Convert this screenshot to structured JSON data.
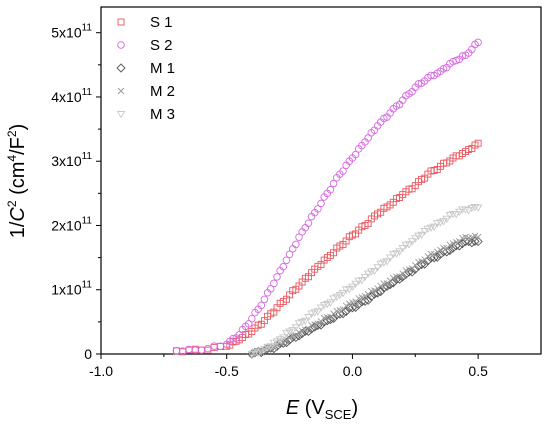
{
  "chart_data": {
    "type": "scatter",
    "xlabel": {
      "main": "E",
      "open": " (V",
      "sub": "SCE",
      "close": ")"
    },
    "ylabel": {
      "pre": "1/",
      "main": "C",
      "sup": "2",
      "mid": " (cm",
      "sup2": "4",
      "mid2": "/F",
      "sup3": "2",
      "close": ")"
    },
    "xlim": [
      -1.0,
      0.75
    ],
    "ylim": [
      0,
      540000000000.0
    ],
    "x_ticks": [
      {
        "value": -1.0,
        "label": "-1.0"
      },
      {
        "value": -0.5,
        "label": "-0.5"
      },
      {
        "value": 0.0,
        "label": "0.0"
      },
      {
        "value": 0.5,
        "label": "0.5"
      }
    ],
    "y_ticks": [
      {
        "value": 0,
        "label": "0",
        "exp": ""
      },
      {
        "value": 100000000000.0,
        "label": "1x10",
        "exp": "11"
      },
      {
        "value": 200000000000.0,
        "label": "2x10",
        "exp": "11"
      },
      {
        "value": 300000000000.0,
        "label": "3x10",
        "exp": "11"
      },
      {
        "value": 400000000000.0,
        "label": "4x10",
        "exp": "11"
      },
      {
        "value": 500000000000.0,
        "label": "5x10",
        "exp": "11"
      }
    ],
    "legend_position": "top-left",
    "series": [
      {
        "name": "S 1",
        "marker": "square",
        "color": "#e8585f",
        "x": [
          -0.7,
          -0.6,
          -0.5,
          -0.45,
          -0.4,
          -0.35,
          -0.3,
          -0.25,
          -0.2,
          -0.15,
          -0.1,
          -0.05,
          0.0,
          0.05,
          0.1,
          0.15,
          0.2,
          0.25,
          0.3,
          0.35,
          0.4,
          0.45,
          0.5
        ],
        "y": [
          5000000000.0,
          6000000000.0,
          12000000000.0,
          22000000000.0,
          35000000000.0,
          52000000000.0,
          72000000000.0,
          92000000000.0,
          112000000000.0,
          132000000000.0,
          150000000000.0,
          168000000000.0,
          185000000000.0,
          200000000000.0,
          218000000000.0,
          232000000000.0,
          248000000000.0,
          262000000000.0,
          280000000000.0,
          292000000000.0,
          305000000000.0,
          315000000000.0,
          328000000000.0
        ]
      },
      {
        "name": "S 2",
        "marker": "circle",
        "color": "#d768e2",
        "x": [
          -0.7,
          -0.6,
          -0.5,
          -0.45,
          -0.4,
          -0.35,
          -0.3,
          -0.25,
          -0.2,
          -0.15,
          -0.1,
          -0.05,
          0.0,
          0.05,
          0.1,
          0.15,
          0.2,
          0.25,
          0.3,
          0.35,
          0.4,
          0.45,
          0.5
        ],
        "y": [
          5000000000.0,
          6000000000.0,
          15000000000.0,
          30000000000.0,
          55000000000.0,
          85000000000.0,
          120000000000.0,
          155000000000.0,
          190000000000.0,
          220000000000.0,
          250000000000.0,
          280000000000.0,
          305000000000.0,
          330000000000.0,
          355000000000.0,
          375000000000.0,
          395000000000.0,
          415000000000.0,
          430000000000.0,
          440000000000.0,
          455000000000.0,
          465000000000.0,
          485000000000.0
        ]
      },
      {
        "name": "M 1",
        "marker": "diamond",
        "color": "#555555",
        "x": [
          -0.4,
          -0.35,
          -0.3,
          -0.25,
          -0.2,
          -0.15,
          -0.1,
          -0.05,
          0.0,
          0.05,
          0.1,
          0.15,
          0.2,
          0.25,
          0.3,
          0.35,
          0.4,
          0.45,
          0.5
        ],
        "y": [
          0.0,
          5000000000.0,
          12000000000.0,
          22000000000.0,
          32000000000.0,
          42000000000.0,
          52000000000.0,
          62000000000.0,
          72000000000.0,
          82000000000.0,
          95000000000.0,
          108000000000.0,
          120000000000.0,
          132000000000.0,
          145000000000.0,
          155000000000.0,
          165000000000.0,
          175000000000.0,
          175000000000.0
        ]
      },
      {
        "name": "M 2",
        "marker": "cross",
        "color": "#9a9a9a",
        "x": [
          -0.4,
          -0.35,
          -0.3,
          -0.25,
          -0.2,
          -0.15,
          -0.1,
          -0.05,
          0.0,
          0.05,
          0.1,
          0.15,
          0.2,
          0.25,
          0.3,
          0.35,
          0.4,
          0.45,
          0.5
        ],
        "y": [
          0.0,
          6000000000.0,
          14000000000.0,
          25000000000.0,
          36000000000.0,
          46000000000.0,
          57000000000.0,
          68000000000.0,
          80000000000.0,
          90000000000.0,
          102000000000.0,
          114000000000.0,
          125000000000.0,
          138000000000.0,
          152000000000.0,
          162000000000.0,
          172000000000.0,
          182000000000.0,
          182000000000.0
        ]
      },
      {
        "name": "M 3",
        "marker": "triangle-down",
        "color": "#c8c8c8",
        "x": [
          -0.4,
          -0.35,
          -0.3,
          -0.25,
          -0.2,
          -0.15,
          -0.1,
          -0.05,
          0.0,
          0.05,
          0.1,
          0.15,
          0.2,
          0.25,
          0.3,
          0.35,
          0.4,
          0.45,
          0.5
        ],
        "y": [
          0.0,
          8000000000.0,
          20000000000.0,
          35000000000.0,
          50000000000.0,
          65000000000.0,
          78000000000.0,
          92000000000.0,
          105000000000.0,
          120000000000.0,
          135000000000.0,
          150000000000.0,
          165000000000.0,
          180000000000.0,
          195000000000.0,
          205000000000.0,
          218000000000.0,
          225000000000.0,
          228000000000.0
        ]
      }
    ]
  }
}
